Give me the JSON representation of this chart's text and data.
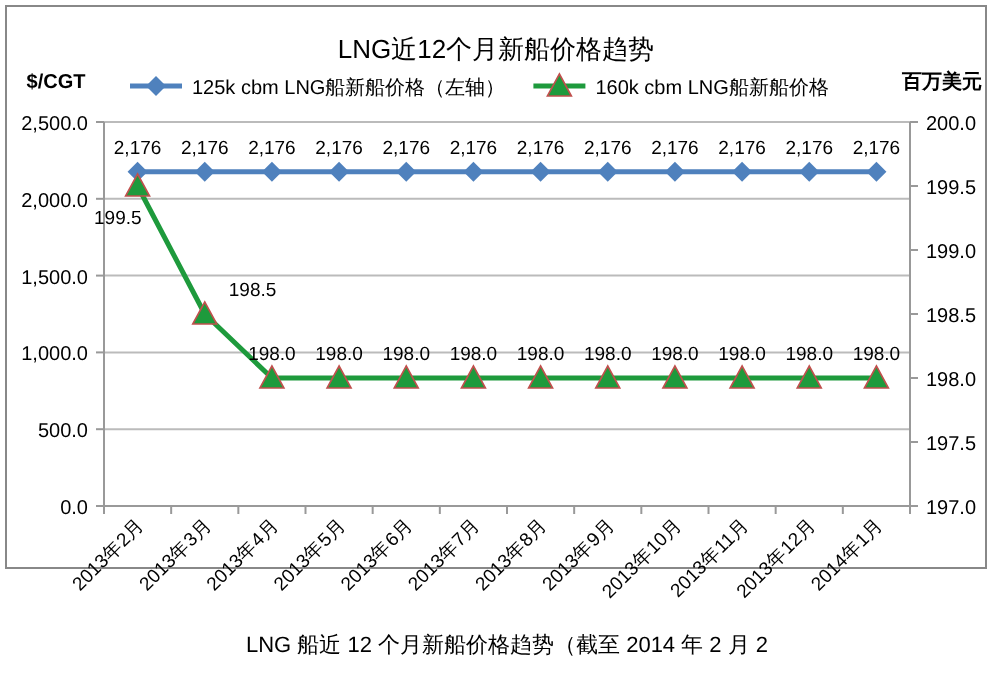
{
  "chart_data": {
    "type": "line",
    "title": "LNG近12个月新船价格趋势",
    "ylabel": "$/CGT",
    "y2label": "百万美元",
    "categories": [
      "2013年2月",
      "2013年3月",
      "2013年4月",
      "2013年5月",
      "2013年6月",
      "2013年7月",
      "2013年8月",
      "2013年9月",
      "2013年10月",
      "2013年11月",
      "2013年12月",
      "2014年1月"
    ],
    "series": [
      {
        "name": "125k cbm LNG船新船价格（左轴）",
        "color": "#4f81bd",
        "marker": "diamond",
        "values": [
          2176,
          2176,
          2176,
          2176,
          2176,
          2176,
          2176,
          2176,
          2176,
          2176,
          2176,
          2176
        ],
        "value_labels": [
          "2,176",
          "2,176",
          "2,176",
          "2,176",
          "2,176",
          "2,176",
          "2,176",
          "2,176",
          "2,176",
          "2,176",
          "2,176",
          "2,176"
        ]
      },
      {
        "name": "160k cbm LNG船新船价格",
        "color": "#1e9a3c",
        "marker": "triangle",
        "axis": "y2",
        "values": [
          199.5,
          198.5,
          198.0,
          198.0,
          198.0,
          198.0,
          198.0,
          198.0,
          198.0,
          198.0,
          198.0,
          198.0
        ],
        "value_labels": [
          "199.5",
          "198.5",
          "198.0",
          "198.0",
          "198.0",
          "198.0",
          "198.0",
          "198.0",
          "198.0",
          "198.0",
          "198.0",
          "198.0"
        ]
      }
    ],
    "ylim": [
      0,
      2500
    ],
    "yticks": [
      {
        "value": 0,
        "label": "0.0"
      },
      {
        "value": 500,
        "label": "500.0"
      },
      {
        "value": 1000,
        "label": "1,000.0"
      },
      {
        "value": 1500,
        "label": "1,500.0"
      },
      {
        "value": 2000,
        "label": "2,000.0"
      },
      {
        "value": 2500,
        "label": "2,500.0"
      }
    ],
    "y2lim": [
      197,
      200
    ],
    "y2ticks": [
      {
        "value": 197,
        "label": "197.0"
      },
      {
        "value": 197.5,
        "label": "197.5"
      },
      {
        "value": 198,
        "label": "198.0"
      },
      {
        "value": 198.5,
        "label": "198.5"
      },
      {
        "value": 199,
        "label": "199.0"
      },
      {
        "value": 199.5,
        "label": "199.5"
      },
      {
        "value": 200,
        "label": "200.0"
      }
    ],
    "grid": "y",
    "legend": "top",
    "annotations": [
      "LNG 船近 12 个月新船价格趋势（截至 2014 年 2 月 2"
    ]
  }
}
